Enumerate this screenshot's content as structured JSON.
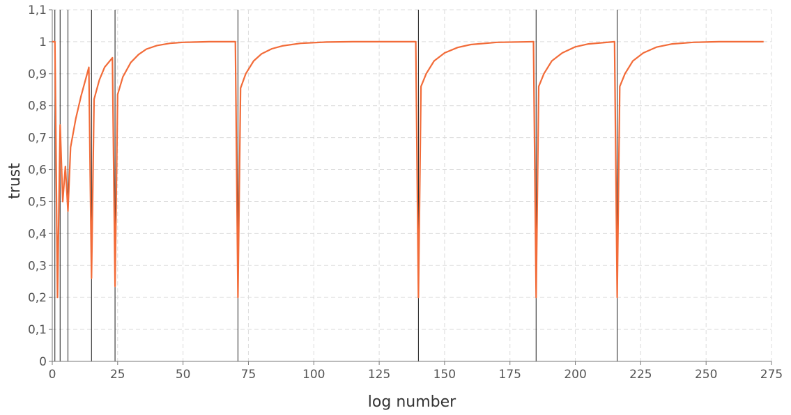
{
  "colors": {
    "series": "#f26b38",
    "event_line": "#1a1a1a"
  },
  "chart_data": {
    "type": "line",
    "title": "",
    "xlabel": "log number",
    "ylabel": "trust",
    "xlim": [
      0,
      275
    ],
    "ylim": [
      0,
      1.1
    ],
    "x_ticks": [
      0,
      25,
      50,
      75,
      100,
      125,
      150,
      175,
      200,
      225,
      250,
      275
    ],
    "x_tick_labels": [
      "0",
      "25",
      "50",
      "75",
      "100",
      "125",
      "150",
      "175",
      "200",
      "225",
      "250",
      "275"
    ],
    "y_ticks": [
      0,
      0.1,
      0.2,
      0.3,
      0.4,
      0.5,
      0.6,
      0.7,
      0.8,
      0.9,
      1.0,
      1.1
    ],
    "y_tick_labels": [
      "0",
      "0,1",
      "0,2",
      "0,3",
      "0,4",
      "0,5",
      "0,6",
      "0,7",
      "0,8",
      "0,9",
      "1",
      "1,1"
    ],
    "grid": true,
    "event_lines_x": [
      1,
      3,
      6,
      15,
      24,
      71,
      140,
      185,
      216
    ],
    "series": [
      {
        "x": [
          0,
          1,
          2,
          3,
          4,
          5,
          6,
          7,
          9,
          11,
          13,
          14,
          15,
          16,
          18,
          20,
          22,
          23,
          24,
          25,
          27,
          30,
          33,
          36,
          40,
          45,
          50,
          55,
          60,
          70,
          71,
          72,
          74,
          77,
          80,
          84,
          88,
          95,
          105,
          115,
          139,
          140,
          141,
          143,
          146,
          150,
          155,
          160,
          170,
          184,
          185,
          186,
          188,
          191,
          195,
          200,
          205,
          215,
          216,
          217,
          219,
          222,
          226,
          231,
          237,
          245,
          255,
          272
        ],
        "y": [
          1.0,
          1.0,
          0.2,
          0.74,
          0.5,
          0.61,
          0.47,
          0.67,
          0.76,
          0.83,
          0.89,
          0.92,
          0.26,
          0.82,
          0.88,
          0.92,
          0.94,
          0.95,
          0.235,
          0.835,
          0.89,
          0.935,
          0.96,
          0.977,
          0.988,
          0.995,
          0.998,
          0.999,
          1.0,
          1.0,
          0.2,
          0.855,
          0.9,
          0.94,
          0.962,
          0.978,
          0.987,
          0.995,
          0.999,
          1.0,
          1.0,
          0.2,
          0.86,
          0.9,
          0.94,
          0.965,
          0.982,
          0.991,
          0.998,
          1.0,
          0.2,
          0.86,
          0.9,
          0.94,
          0.965,
          0.984,
          0.993,
          1.0,
          0.2,
          0.86,
          0.9,
          0.94,
          0.965,
          0.983,
          0.993,
          0.998,
          1.0,
          1.0
        ]
      }
    ]
  }
}
